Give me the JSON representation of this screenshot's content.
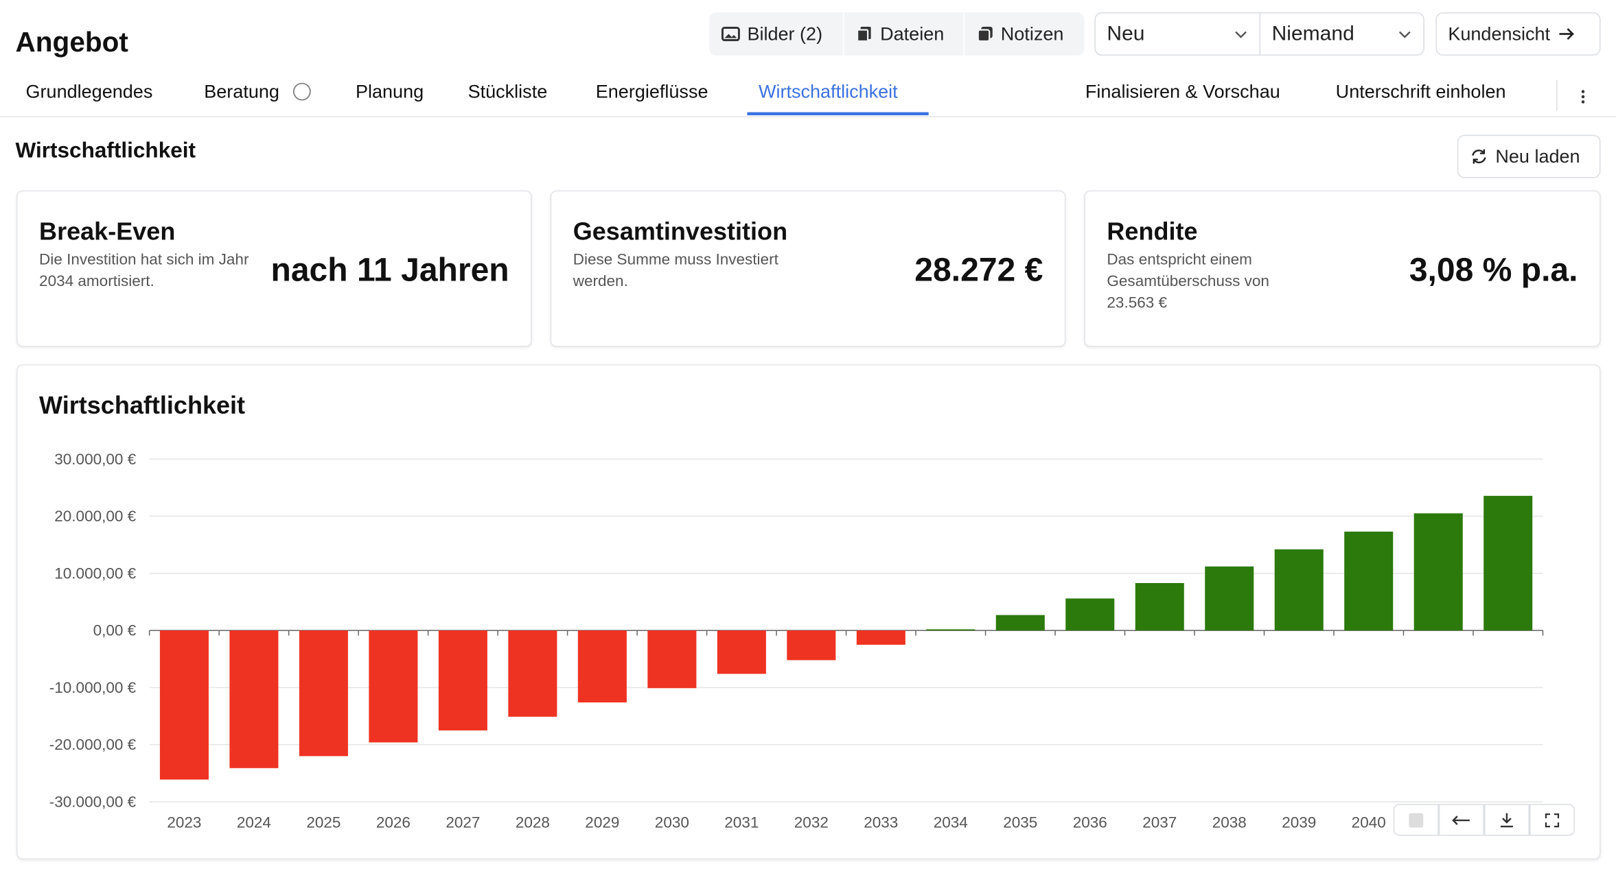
{
  "header": {
    "title": "Angebot",
    "buttons": [
      "Bilder (2)",
      "Dateien",
      "Notizen"
    ],
    "status": "Neu",
    "assignee": "Niemand",
    "customer_view": "Kundensicht"
  },
  "tabs": {
    "items": [
      "Grundlegendes",
      "Beratung",
      "Planung",
      "Stückliste",
      "Energieflüsse",
      "Wirtschaftlichkeit",
      "Finalisieren & Vorschau",
      "Unterschrift einholen"
    ],
    "active": "Wirtschaftlichkeit"
  },
  "section": {
    "title": "Wirtschaftlichkeit",
    "reload": "Neu laden"
  },
  "cards": [
    {
      "title": "Break-Even",
      "description": "Die Investition hat sich im Jahr 2034 amortisiert.",
      "value": "nach 11 Jahren"
    },
    {
      "title": "Gesamtinvestition",
      "description": "Diese Summe muss Investiert werden.",
      "value": "28.272 €"
    },
    {
      "title": "Rendite",
      "description": "Das entspricht einem Gesamtüberschuss von 23.563 €",
      "value": "3,08 % p.a."
    }
  ],
  "chart_data": {
    "type": "bar",
    "title": "Wirtschaftlichkeit",
    "categories": [
      "2023",
      "2024",
      "2025",
      "2026",
      "2027",
      "2028",
      "2029",
      "2030",
      "2031",
      "2032",
      "2033",
      "2034",
      "2035",
      "2036",
      "2037",
      "2038",
      "2039",
      "2040",
      null,
      null
    ],
    "values": [
      -26100,
      -24100,
      -22000,
      -19600,
      -17500,
      -15100,
      -12600,
      -10100,
      -7600,
      -5200,
      -2500,
      200,
      2700,
      5600,
      8300,
      11200,
      14200,
      17300,
      20500,
      23563
    ],
    "colors": {
      "negative": "#ee3322",
      "positive": "#2b7a0b"
    },
    "ylim": [
      -30000,
      30000
    ],
    "yticks": [
      {
        "value": -30000,
        "label": "-30.000,00 €"
      },
      {
        "value": -20000,
        "label": "-20.000,00 €"
      },
      {
        "value": -10000,
        "label": "-10.000,00 €"
      },
      {
        "value": 0,
        "label": "0,00 €"
      },
      {
        "value": 10000,
        "label": "10.000,00 €"
      },
      {
        "value": 20000,
        "label": "20.000,00 €"
      },
      {
        "value": 30000,
        "label": "30.000,00 €"
      }
    ],
    "grid": true
  }
}
